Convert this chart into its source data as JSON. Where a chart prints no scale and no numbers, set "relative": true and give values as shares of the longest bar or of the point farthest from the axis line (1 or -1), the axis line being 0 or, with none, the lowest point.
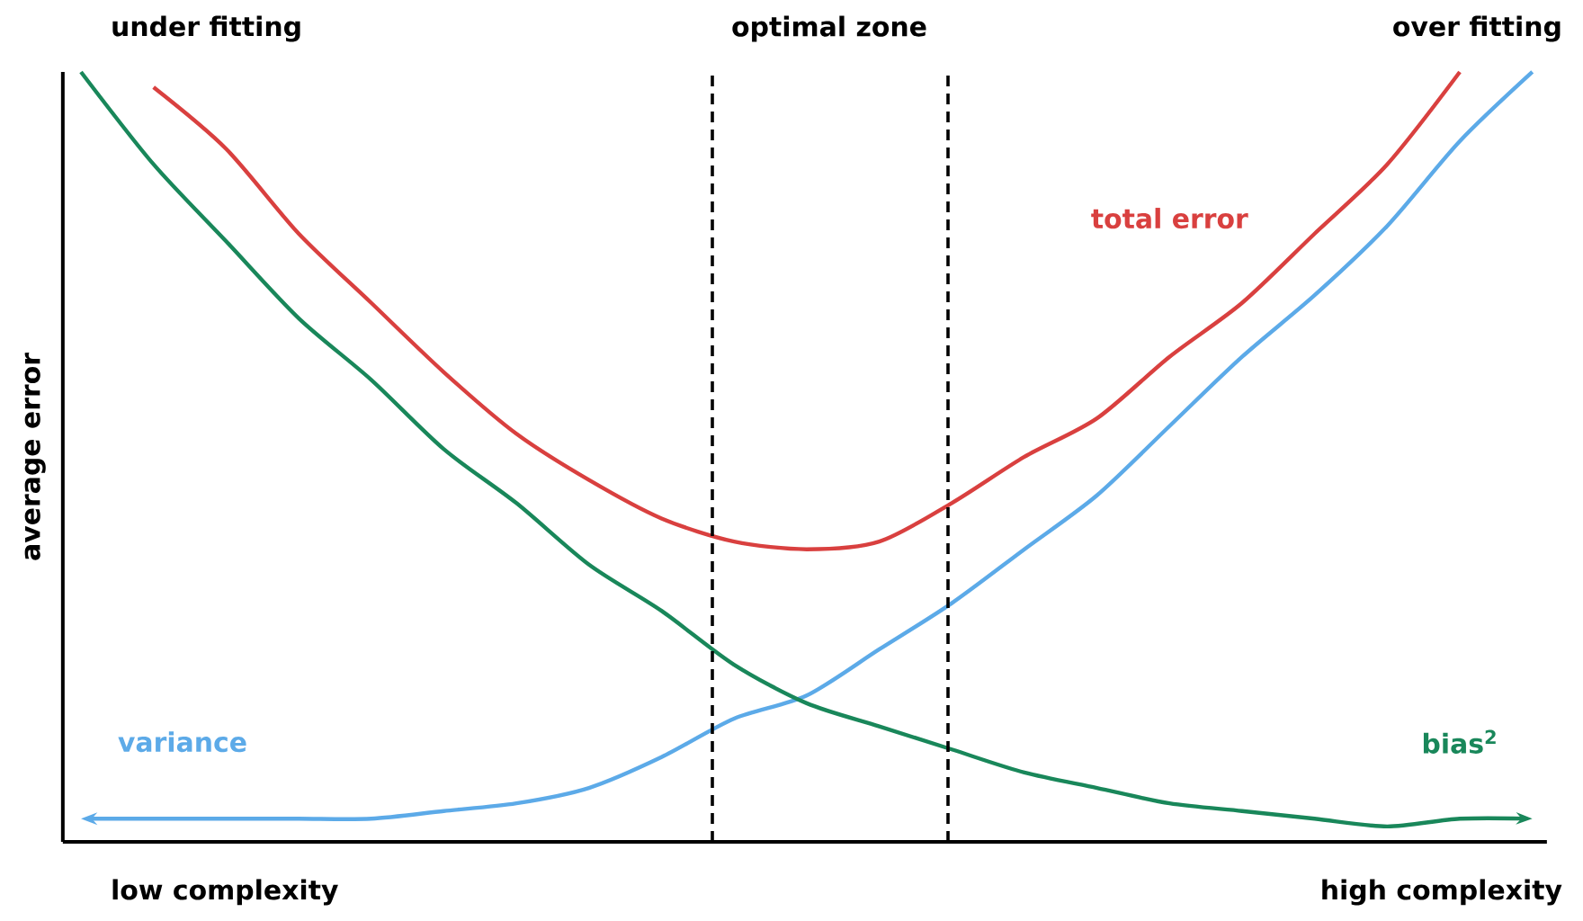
{
  "chart_data": {
    "type": "line",
    "relative": true,
    "ylabel": "average error",
    "legend": false,
    "marker": "none",
    "line_style": "solid",
    "categories": [
      null,
      null,
      null,
      null,
      null,
      null,
      null,
      null,
      null,
      null,
      null,
      null,
      null,
      null,
      null,
      null,
      null,
      null,
      null,
      null,
      null
    ],
    "series": [
      {
        "name": "total error",
        "color": "#d9403f",
        "values": [
          null,
          0.98,
          0.9,
          0.79,
          0.7,
          0.61,
          0.53,
          0.47,
          0.42,
          0.39,
          0.38,
          0.39,
          0.44,
          0.5,
          0.55,
          0.63,
          0.7,
          0.79,
          0.88,
          1.0,
          null
        ]
      },
      {
        "name": "variance",
        "color": "#5caae8",
        "values": [
          0.03,
          0.03,
          0.03,
          0.03,
          0.03,
          0.04,
          0.05,
          0.07,
          0.11,
          0.16,
          0.19,
          0.25,
          0.31,
          0.38,
          0.45,
          0.54,
          0.63,
          0.71,
          0.8,
          0.91,
          1.0
        ]
      },
      {
        "name": "bias$^{2}$",
        "color": "#19875a",
        "values": [
          1.0,
          0.88,
          0.78,
          0.68,
          0.6,
          0.51,
          0.44,
          0.36,
          0.3,
          0.23,
          0.18,
          0.15,
          0.12,
          0.09,
          0.07,
          0.05,
          0.04,
          0.03,
          0.02,
          0.03,
          0.03
        ]
      }
    ],
    "annotations": [
      "under fitting",
      "optimal zone",
      "over fitting",
      "low complexity",
      "high complexity"
    ]
  }
}
